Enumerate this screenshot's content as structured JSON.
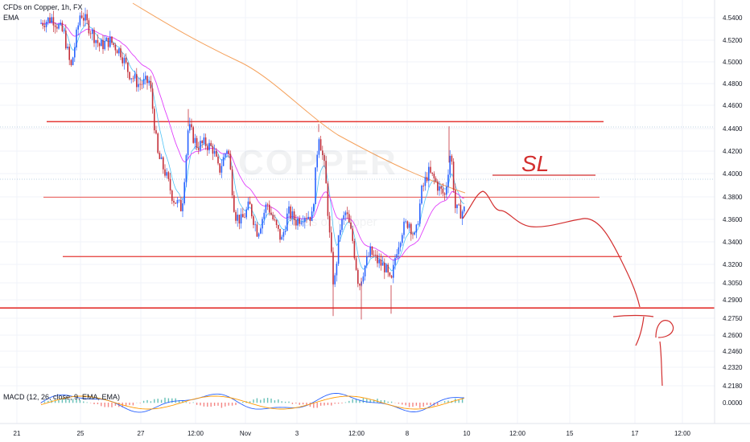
{
  "header": {
    "symbol_line": "CFDs on Copper, 1h, FX",
    "indicator": "EMA"
  },
  "watermark": {
    "main": "COPPER",
    "sub": "CFDs on Copper"
  },
  "colors": {
    "up": "#2962ff",
    "down": "#c4303a",
    "level_line": "#e53935",
    "ema_pink": "#e040fb",
    "ema_orange": "#f5a25d",
    "ema_blue": "#4fc3f7",
    "annotation": "#d32f2f",
    "macd_line": "#2962ff",
    "signal_line": "#ff9800",
    "hist_pos": "#26a69a",
    "hist_neg": "#ef5350"
  },
  "annotations": {
    "sl": "SL",
    "tp": "TP"
  },
  "macd": {
    "label": "MACD (12, 26, close, 9, EMA, EMA)",
    "axis_label": "0.0000"
  },
  "chart_data": {
    "type": "candlestick",
    "title": "CFDs on Copper, 1h, FX",
    "xlabel": "",
    "ylabel": "",
    "ylim": [
      4.214,
      4.562
    ],
    "y_ticks": [
      "4.5400",
      "4.5200",
      "4.5000",
      "4.4800",
      "4.4600",
      "4.4400",
      "4.4200",
      "4.4000",
      "4.3800",
      "4.3600",
      "4.3400",
      "4.3200",
      "4.3050",
      "4.2900",
      "4.2750",
      "4.2600",
      "4.2460",
      "4.2320",
      "4.2180"
    ],
    "x_ticks": [
      "21",
      "25",
      "27",
      "12:00",
      "Nov",
      "3",
      "12:00",
      "8",
      "10",
      "12:00",
      "15",
      "17",
      "12:00"
    ],
    "horizontal_levels": [
      4.449,
      4.383,
      4.331,
      4.286
    ],
    "grid": true,
    "legend": "none"
  }
}
